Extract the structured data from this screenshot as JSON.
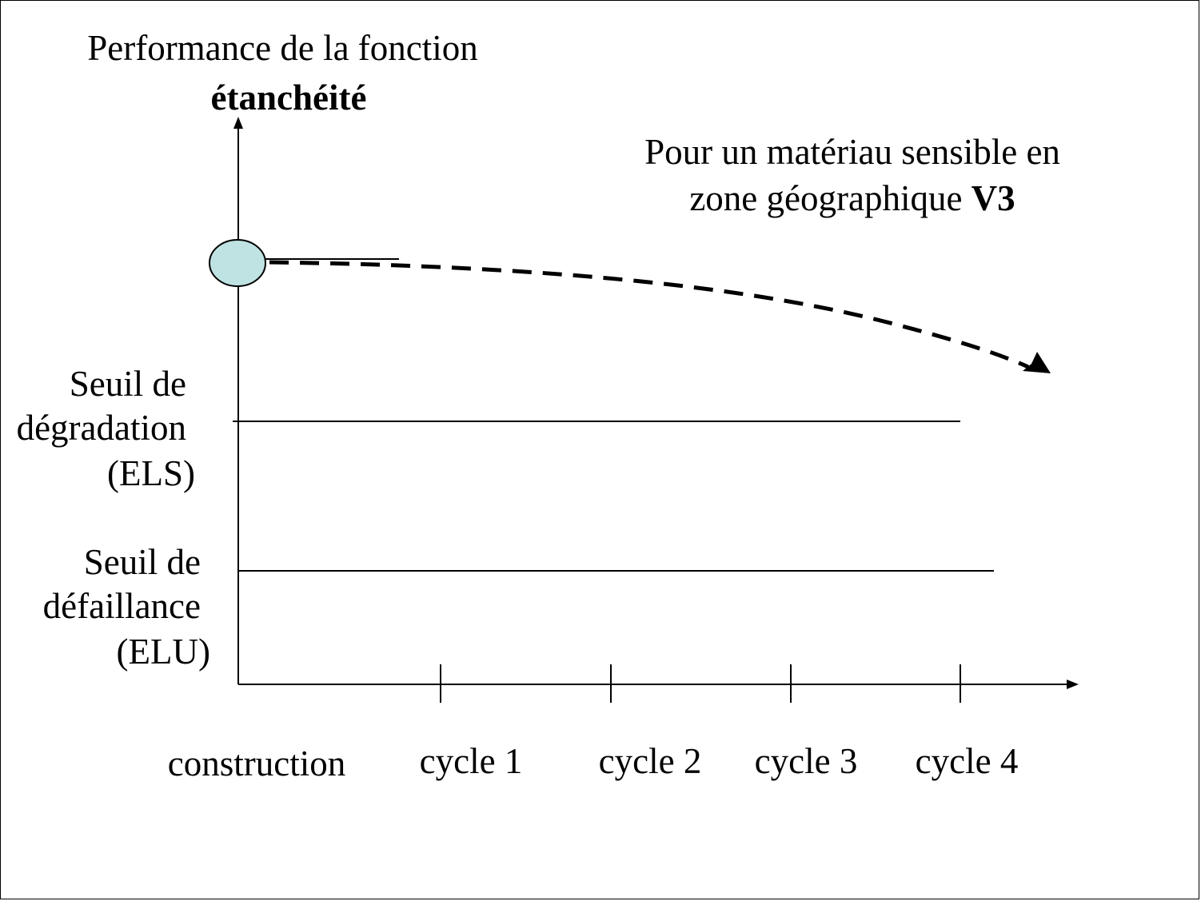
{
  "y_axis_title": {
    "line1": "Performance de la fonction",
    "line2": "étanchéité"
  },
  "annotation": {
    "line1": "Pour un matériau sensible en",
    "line2_prefix": "zone géographique ",
    "line2_bold": "V3"
  },
  "thresholds": {
    "els": {
      "line1": "Seuil de",
      "line2": "dégradation",
      "line3": "(ELS)"
    },
    "elu": {
      "line1": "Seuil de",
      "line2": "défaillance",
      "line3": "(ELU)"
    }
  },
  "x_labels": [
    "construction",
    "cycle 1",
    "cycle 2",
    "cycle 3",
    "cycle 4"
  ],
  "colors": {
    "stroke": "#000000",
    "start_marker_fill": "#bfe3e3"
  }
}
